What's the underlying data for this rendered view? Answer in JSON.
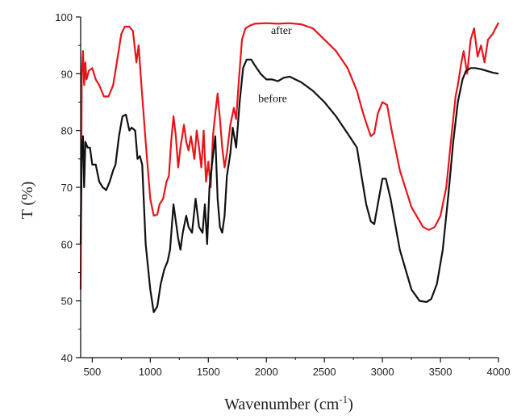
{
  "chart_data": {
    "type": "line",
    "title": "",
    "xlabel": "Wavenumber (cm",
    "xlabel_sup": "-1",
    "xlabel_close": ")",
    "ylabel": "T (%)",
    "xlim": [
      400,
      4000
    ],
    "ylim": [
      40,
      100
    ],
    "xticks": [
      500,
      1000,
      1500,
      2000,
      2500,
      3000,
      3500,
      4000
    ],
    "yticks": [
      40,
      50,
      60,
      70,
      80,
      90,
      100
    ],
    "grid": false,
    "legend": "none (inline labels)",
    "series": [
      {
        "name": "after",
        "color": "#e8141b",
        "label_at": [
          2040,
          97
        ],
        "points": [
          [
            400,
            52
          ],
          [
            410,
            90
          ],
          [
            420,
            94
          ],
          [
            430,
            88
          ],
          [
            440,
            92
          ],
          [
            450,
            89
          ],
          [
            470,
            90.5
          ],
          [
            500,
            91
          ],
          [
            530,
            89
          ],
          [
            560,
            88
          ],
          [
            600,
            86
          ],
          [
            640,
            86
          ],
          [
            680,
            88
          ],
          [
            720,
            93
          ],
          [
            750,
            97
          ],
          [
            780,
            98.3
          ],
          [
            820,
            98.3
          ],
          [
            850,
            97.5
          ],
          [
            870,
            94
          ],
          [
            880,
            92
          ],
          [
            900,
            95
          ],
          [
            920,
            89
          ],
          [
            960,
            78
          ],
          [
            1000,
            68
          ],
          [
            1030,
            65
          ],
          [
            1060,
            65.2
          ],
          [
            1080,
            67
          ],
          [
            1110,
            68
          ],
          [
            1140,
            71
          ],
          [
            1160,
            72
          ],
          [
            1180,
            78
          ],
          [
            1200,
            82.5
          ],
          [
            1220,
            79
          ],
          [
            1240,
            73.5
          ],
          [
            1260,
            77
          ],
          [
            1290,
            81
          ],
          [
            1310,
            78
          ],
          [
            1330,
            76.5
          ],
          [
            1350,
            79
          ],
          [
            1380,
            75
          ],
          [
            1400,
            80
          ],
          [
            1420,
            77
          ],
          [
            1440,
            73.5
          ],
          [
            1460,
            80
          ],
          [
            1480,
            71
          ],
          [
            1500,
            74.5
          ],
          [
            1520,
            70
          ],
          [
            1540,
            79
          ],
          [
            1560,
            83
          ],
          [
            1580,
            86.5
          ],
          [
            1600,
            82
          ],
          [
            1620,
            77
          ],
          [
            1640,
            73.5
          ],
          [
            1660,
            76
          ],
          [
            1690,
            81
          ],
          [
            1720,
            84
          ],
          [
            1740,
            82
          ],
          [
            1760,
            88
          ],
          [
            1790,
            96
          ],
          [
            1820,
            98
          ],
          [
            1860,
            98.5
          ],
          [
            1900,
            98.8
          ],
          [
            2000,
            98.9
          ],
          [
            2100,
            98.8
          ],
          [
            2200,
            98.9
          ],
          [
            2300,
            98.7
          ],
          [
            2400,
            98
          ],
          [
            2500,
            96
          ],
          [
            2600,
            94
          ],
          [
            2700,
            91
          ],
          [
            2780,
            87
          ],
          [
            2820,
            84
          ],
          [
            2850,
            82
          ],
          [
            2900,
            79
          ],
          [
            2930,
            79.5
          ],
          [
            2960,
            83
          ],
          [
            3000,
            85
          ],
          [
            3040,
            84.5
          ],
          [
            3080,
            80
          ],
          [
            3150,
            73
          ],
          [
            3250,
            66.5
          ],
          [
            3350,
            63
          ],
          [
            3400,
            62.5
          ],
          [
            3450,
            63
          ],
          [
            3500,
            65
          ],
          [
            3550,
            70
          ],
          [
            3600,
            80
          ],
          [
            3630,
            86
          ],
          [
            3650,
            88
          ],
          [
            3680,
            92
          ],
          [
            3700,
            94
          ],
          [
            3730,
            90
          ],
          [
            3760,
            96
          ],
          [
            3790,
            98
          ],
          [
            3820,
            93
          ],
          [
            3850,
            95
          ],
          [
            3880,
            92
          ],
          [
            3910,
            96
          ],
          [
            3950,
            97
          ],
          [
            4000,
            99
          ]
        ]
      },
      {
        "name": "before",
        "color": "#111111",
        "label_at": [
          1930,
          85
        ],
        "points": [
          [
            400,
            60
          ],
          [
            410,
            77
          ],
          [
            420,
            79
          ],
          [
            430,
            70
          ],
          [
            440,
            78
          ],
          [
            460,
            77
          ],
          [
            480,
            77
          ],
          [
            500,
            74
          ],
          [
            530,
            74
          ],
          [
            560,
            71
          ],
          [
            590,
            70
          ],
          [
            620,
            69.5
          ],
          [
            650,
            71
          ],
          [
            680,
            73
          ],
          [
            700,
            74
          ],
          [
            730,
            79
          ],
          [
            760,
            82.5
          ],
          [
            790,
            82.8
          ],
          [
            820,
            80
          ],
          [
            840,
            80.5
          ],
          [
            870,
            80
          ],
          [
            890,
            75
          ],
          [
            910,
            75.5
          ],
          [
            930,
            74
          ],
          [
            960,
            60
          ],
          [
            1000,
            52
          ],
          [
            1030,
            48
          ],
          [
            1060,
            49
          ],
          [
            1090,
            53
          ],
          [
            1120,
            55.5
          ],
          [
            1150,
            57
          ],
          [
            1170,
            59
          ],
          [
            1200,
            67
          ],
          [
            1220,
            64
          ],
          [
            1240,
            61
          ],
          [
            1260,
            59
          ],
          [
            1280,
            62
          ],
          [
            1310,
            65
          ],
          [
            1330,
            63
          ],
          [
            1360,
            62
          ],
          [
            1390,
            68
          ],
          [
            1420,
            63
          ],
          [
            1450,
            62
          ],
          [
            1470,
            67
          ],
          [
            1490,
            60
          ],
          [
            1510,
            70
          ],
          [
            1540,
            75.5
          ],
          [
            1560,
            79
          ],
          [
            1580,
            68
          ],
          [
            1600,
            63
          ],
          [
            1620,
            62
          ],
          [
            1640,
            65
          ],
          [
            1660,
            72
          ],
          [
            1690,
            76
          ],
          [
            1710,
            80.5
          ],
          [
            1740,
            77
          ],
          [
            1770,
            85
          ],
          [
            1800,
            91
          ],
          [
            1830,
            92.5
          ],
          [
            1870,
            92.5
          ],
          [
            1900,
            91.5
          ],
          [
            1950,
            90
          ],
          [
            2000,
            89
          ],
          [
            2050,
            89
          ],
          [
            2100,
            88.7
          ],
          [
            2150,
            89.3
          ],
          [
            2200,
            89.5
          ],
          [
            2300,
            88.5
          ],
          [
            2400,
            87
          ],
          [
            2500,
            85
          ],
          [
            2600,
            82.5
          ],
          [
            2700,
            79.5
          ],
          [
            2780,
            77
          ],
          [
            2820,
            72
          ],
          [
            2860,
            67
          ],
          [
            2900,
            64
          ],
          [
            2930,
            63.5
          ],
          [
            2960,
            67
          ],
          [
            3000,
            71.5
          ],
          [
            3030,
            71.5
          ],
          [
            3070,
            68
          ],
          [
            3150,
            59
          ],
          [
            3250,
            52
          ],
          [
            3320,
            50
          ],
          [
            3380,
            49.8
          ],
          [
            3420,
            50.3
          ],
          [
            3470,
            53
          ],
          [
            3520,
            59
          ],
          [
            3570,
            69
          ],
          [
            3610,
            78
          ],
          [
            3650,
            85
          ],
          [
            3690,
            89
          ],
          [
            3720,
            90.5
          ],
          [
            3760,
            91
          ],
          [
            3800,
            91
          ],
          [
            3850,
            90.8
          ],
          [
            3900,
            90.5
          ],
          [
            3950,
            90.2
          ],
          [
            4000,
            90
          ]
        ]
      }
    ]
  }
}
